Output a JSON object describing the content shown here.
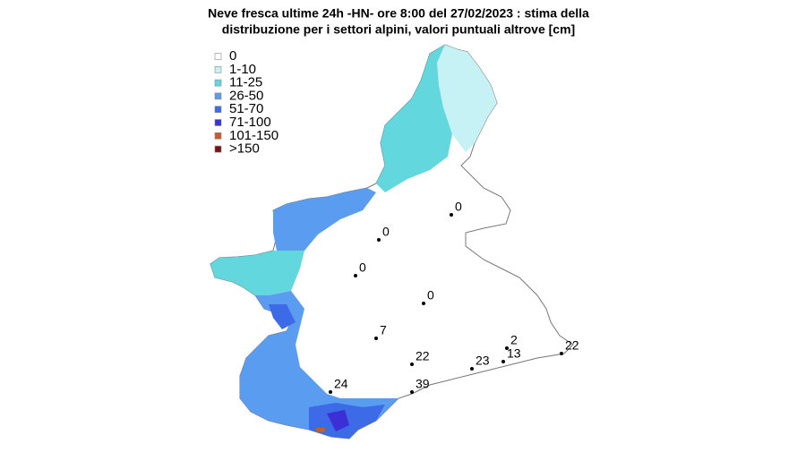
{
  "title": [
    "Neve fresca ultime 24h -HN- ore 8:00 del 27/02/2023 : stima della",
    "distribuzione per i settori alpini, valori puntuali altrove [cm]"
  ],
  "legend": [
    {
      "label": "0",
      "color": "#ffffff"
    },
    {
      "label": "1-10",
      "color": "#c6f2f6"
    },
    {
      "label": "11-25",
      "color": "#62d8de"
    },
    {
      "label": "26-50",
      "color": "#5a9cf0"
    },
    {
      "label": "51-70",
      "color": "#3d6ae6"
    },
    {
      "label": "71-100",
      "color": "#3a30d6"
    },
    {
      "label": "101-150",
      "color": "#cc5a28"
    },
    {
      "label": ">150",
      "color": "#7a1010"
    }
  ],
  "points": [
    0,
    0,
    0,
    0,
    7,
    22,
    23,
    13,
    2,
    22,
    39,
    24
  ]
}
